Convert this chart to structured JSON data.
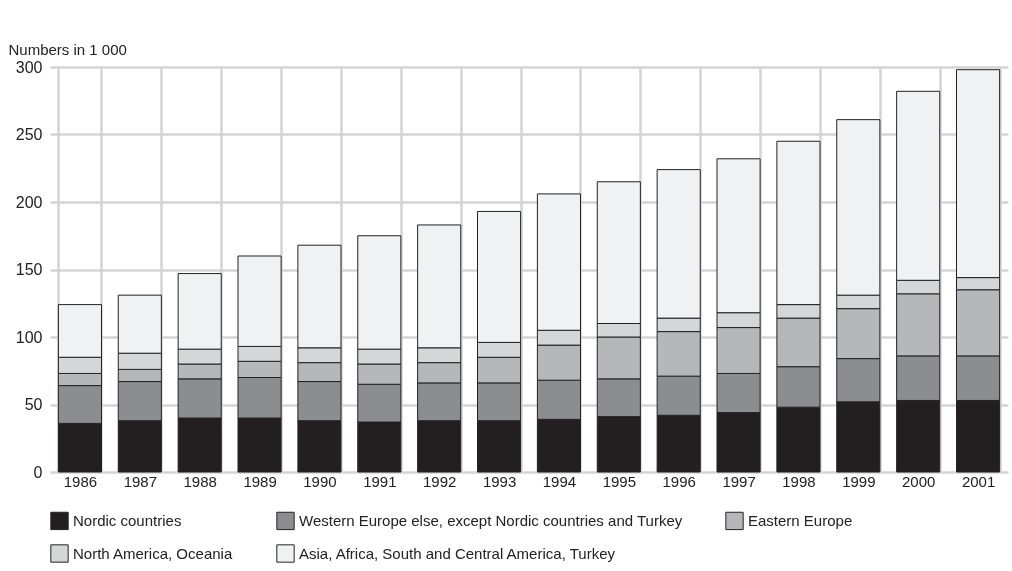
{
  "chart_data": {
    "type": "bar",
    "stacked": true,
    "ylabel": "Numbers in 1 000",
    "categories": [
      "1986",
      "1987",
      "1988",
      "1989",
      "1990",
      "1991",
      "1992",
      "1993",
      "1994",
      "1995",
      "1996",
      "1997",
      "1998",
      "1999",
      "2000",
      "2001"
    ],
    "series": [
      {
        "name": "Nordic countries",
        "color": "#231f20",
        "values": [
          36,
          38,
          40,
          40,
          38,
          37,
          38,
          38,
          39,
          41,
          42,
          44,
          48,
          52,
          53,
          53
        ]
      },
      {
        "name": "Western Europe else, except Nordic countries and Turkey",
        "color": "#8c8d90",
        "values": [
          28,
          29,
          29,
          30,
          29,
          28,
          28,
          28,
          29,
          28,
          29,
          29,
          30,
          32,
          33,
          33
        ]
      },
      {
        "name": "Eastern Europe",
        "color": "#b6b7ba",
        "values": [
          9,
          9,
          11,
          12,
          14,
          15,
          15,
          19,
          26,
          31,
          33,
          34,
          36,
          37,
          46,
          49
        ]
      },
      {
        "name": "North America, Oceania",
        "color": "#d5d6d8",
        "values": [
          12,
          12,
          11,
          11,
          11,
          11,
          11,
          11,
          11,
          10,
          10,
          11,
          10,
          10,
          10,
          9
        ]
      },
      {
        "name": "Asia, Africa, South and Central America, Turkey",
        "color": "#f0f1f2",
        "values": [
          39,
          43,
          56,
          67,
          76,
          84,
          91,
          97,
          101,
          105,
          110,
          114,
          121,
          130,
          140,
          154
        ]
      }
    ],
    "ylim": [
      0,
      300
    ],
    "yticks": [
      0,
      50,
      100,
      150,
      200,
      250,
      300
    ],
    "grid": true,
    "legend": "bottom"
  }
}
